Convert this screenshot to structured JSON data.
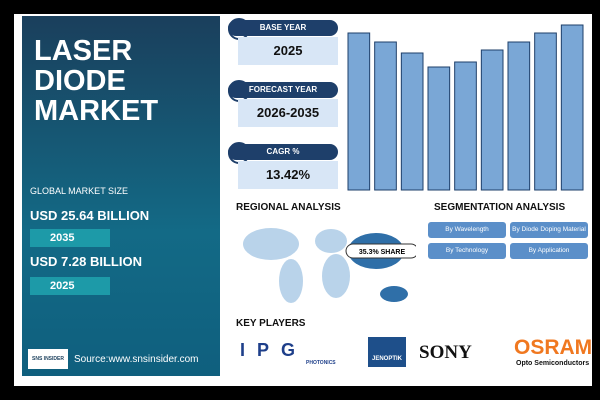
{
  "header": {
    "title": "LASER DIODE MARKET"
  },
  "market_size": {
    "label": "GLOBAL MARKET SIZE",
    "items": [
      {
        "value": "USD 25.64 BILLION",
        "year": "2035"
      },
      {
        "value": "USD 7.28 BILLION",
        "year": "2025"
      }
    ]
  },
  "source": {
    "logo": "SNS INSIDER",
    "text": "Source:www.snsinsider.com"
  },
  "cards": [
    {
      "label": "BASE YEAR",
      "value": "2025"
    },
    {
      "label": "FORECAST YEAR",
      "value": "2026-2035"
    },
    {
      "label": "CAGR %",
      "value": "13.42%"
    }
  ],
  "bar_chart": {
    "values": [
      157,
      148,
      137,
      123,
      128,
      140,
      148,
      157,
      165
    ],
    "ylim": [
      0,
      165
    ],
    "color": "#7aa7d6"
  },
  "regional": {
    "title": "REGIONAL ANALYSIS",
    "callout": "35.3% SHARE"
  },
  "segmentation": {
    "title": "SEGMENTATION ANALYSIS",
    "buttons": [
      "By Wavelength",
      "By Diode Doping Material",
      "By Technology",
      "By Application"
    ]
  },
  "key_players": {
    "title": "KEY PLAYERS",
    "logos": [
      "IPG",
      "PHOTONICS",
      "JENOPTIK",
      "SONY",
      "OSRAM",
      "Opto Semiconductors"
    ]
  }
}
